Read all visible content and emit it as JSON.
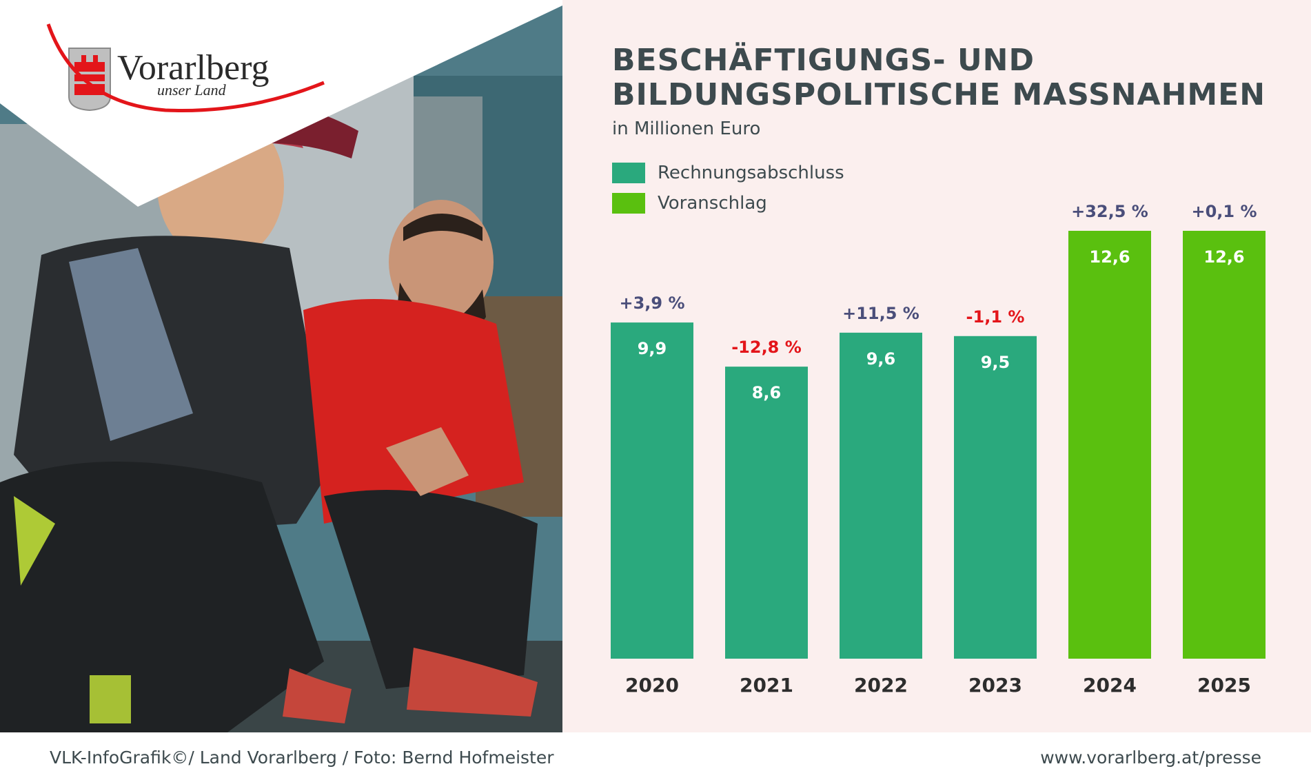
{
  "logo": {
    "name": "Vorarlberg",
    "tagline": "unser Land"
  },
  "colors": {
    "actual": "#2aa97d",
    "budget": "#5ac00f",
    "positive": "#4a4e7a",
    "negative": "#e3151a",
    "background": "#fbefee",
    "logo_red": "#e3151a"
  },
  "chart_data": {
    "type": "bar",
    "title_lines": [
      "BESCHÄFTIGUNGS- UND",
      "BILDUNGSPOLITISCHE MASSNAHMEN"
    ],
    "subtitle": "in Millionen Euro",
    "legend": [
      {
        "label": "Rechnungsabschluss",
        "key": "actual"
      },
      {
        "label": "Voranschlag",
        "key": "budget"
      }
    ],
    "categories": [
      "2020",
      "2021",
      "2022",
      "2023",
      "2024",
      "2025"
    ],
    "values": [
      9.9,
      8.6,
      9.6,
      9.5,
      12.6,
      12.6
    ],
    "value_labels": [
      "9,9",
      "8,6",
      "9,6",
      "9,5",
      "12,6",
      "12,6"
    ],
    "series_type": [
      "actual",
      "actual",
      "actual",
      "actual",
      "budget",
      "budget"
    ],
    "changes": [
      "+3,9 %",
      "-12,8 %",
      "+11,5 %",
      "-1,1 %",
      "+32,5 %",
      "+0,1 %"
    ],
    "change_sign": [
      "positive",
      "negative",
      "positive",
      "negative",
      "positive",
      "positive"
    ],
    "ylim": [
      0,
      14.5
    ],
    "xlabel": "",
    "ylabel": ""
  },
  "footer": {
    "credit": "VLK-InfoGrafik©/ Land Vorarlberg / Foto: Bernd Hofmeister",
    "url": "www.vorarlberg.at/presse"
  }
}
